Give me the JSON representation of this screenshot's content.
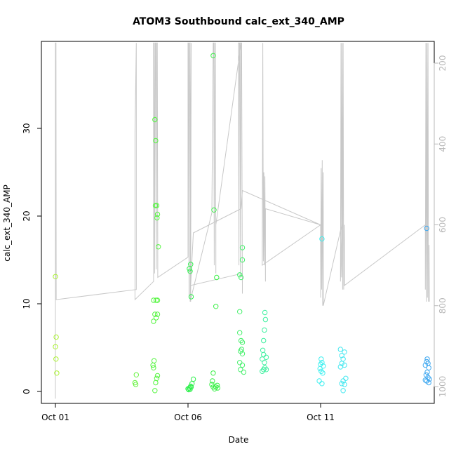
{
  "chart_data": {
    "type": "scatter",
    "title": "ATOM3 Southbound calc_ext_340_AMP",
    "xlabel": "Date",
    "ylabel": "calc_ext_340_AMP",
    "ylim": [
      0,
      40
    ],
    "yticks": [
      0,
      10,
      20,
      30
    ],
    "y2lim": [
      1030,
      150
    ],
    "y2ticks": [
      200,
      400,
      600,
      800,
      1000
    ],
    "xlim": [
      0,
      14.5
    ],
    "xticks": [
      {
        "x": 0,
        "label": "Oct 01"
      },
      {
        "x": 5,
        "label": "Oct 06"
      },
      {
        "x": 10,
        "label": "Oct 11"
      }
    ],
    "line_color": "#c8c8c8",
    "points": [
      {
        "x": 0.0,
        "y": 13.1,
        "c": "#aaf32f"
      },
      {
        "x": 0.03,
        "y": 6.2,
        "c": "#aaf32f"
      },
      {
        "x": 0.0,
        "y": 5.1,
        "c": "#aaf32f"
      },
      {
        "x": 0.02,
        "y": 3.7,
        "c": "#aaf32f"
      },
      {
        "x": 0.05,
        "y": 2.1,
        "c": "#aaf32f"
      },
      {
        "x": 3.05,
        "y": 1.9,
        "c": "#66f33f"
      },
      {
        "x": 3.0,
        "y": 1.0,
        "c": "#66f33f"
      },
      {
        "x": 3.03,
        "y": 0.8,
        "c": "#66f33f"
      },
      {
        "x": 3.75,
        "y": 31.0,
        "c": "#55f540"
      },
      {
        "x": 3.78,
        "y": 28.6,
        "c": "#55f540"
      },
      {
        "x": 3.77,
        "y": 21.2,
        "c": "#55f540"
      },
      {
        "x": 3.82,
        "y": 21.2,
        "c": "#55f540"
      },
      {
        "x": 3.85,
        "y": 20.2,
        "c": "#55f540"
      },
      {
        "x": 3.83,
        "y": 19.8,
        "c": "#55f540"
      },
      {
        "x": 3.88,
        "y": 16.5,
        "c": "#55f540"
      },
      {
        "x": 3.7,
        "y": 10.4,
        "c": "#55f540"
      },
      {
        "x": 3.8,
        "y": 10.4,
        "c": "#55f540"
      },
      {
        "x": 3.85,
        "y": 10.4,
        "c": "#55f540"
      },
      {
        "x": 3.75,
        "y": 8.8,
        "c": "#55f540"
      },
      {
        "x": 3.85,
        "y": 8.8,
        "c": "#55f540"
      },
      {
        "x": 3.8,
        "y": 8.4,
        "c": "#55f540"
      },
      {
        "x": 3.7,
        "y": 8.0,
        "c": "#55f540"
      },
      {
        "x": 3.72,
        "y": 3.5,
        "c": "#55f540"
      },
      {
        "x": 3.68,
        "y": 3.0,
        "c": "#55f540"
      },
      {
        "x": 3.7,
        "y": 2.7,
        "c": "#55f540"
      },
      {
        "x": 3.85,
        "y": 1.8,
        "c": "#55f540"
      },
      {
        "x": 3.82,
        "y": 1.5,
        "c": "#55f540"
      },
      {
        "x": 3.78,
        "y": 1.0,
        "c": "#55f540"
      },
      {
        "x": 3.75,
        "y": 0.1,
        "c": "#55f540"
      },
      {
        "x": 5.1,
        "y": 14.5,
        "c": "#2ff04d"
      },
      {
        "x": 5.05,
        "y": 14.0,
        "c": "#2ff04d"
      },
      {
        "x": 5.08,
        "y": 13.7,
        "c": "#2ff04d"
      },
      {
        "x": 5.12,
        "y": 10.8,
        "c": "#2ff04d"
      },
      {
        "x": 5.2,
        "y": 1.4,
        "c": "#2ff04d"
      },
      {
        "x": 5.15,
        "y": 0.9,
        "c": "#2ff04d"
      },
      {
        "x": 5.1,
        "y": 0.6,
        "c": "#2ff04d"
      },
      {
        "x": 5.05,
        "y": 0.4,
        "c": "#2ff04d"
      },
      {
        "x": 5.0,
        "y": 0.3,
        "c": "#2ff04d"
      },
      {
        "x": 5.03,
        "y": 0.2,
        "c": "#2ff04d"
      },
      {
        "x": 5.08,
        "y": 0.25,
        "c": "#2ff04d"
      },
      {
        "x": 5.12,
        "y": 0.5,
        "c": "#2ff04d"
      },
      {
        "x": 5.95,
        "y": 38.3,
        "c": "#38f045"
      },
      {
        "x": 5.98,
        "y": 20.7,
        "c": "#38f045"
      },
      {
        "x": 6.08,
        "y": 13.0,
        "c": "#38f045"
      },
      {
        "x": 6.05,
        "y": 9.7,
        "c": "#38f045"
      },
      {
        "x": 5.95,
        "y": 2.1,
        "c": "#38f045"
      },
      {
        "x": 5.92,
        "y": 1.2,
        "c": "#38f045"
      },
      {
        "x": 5.9,
        "y": 0.8,
        "c": "#38f045"
      },
      {
        "x": 5.95,
        "y": 0.5,
        "c": "#38f045"
      },
      {
        "x": 6.0,
        "y": 0.3,
        "c": "#38f045"
      },
      {
        "x": 6.05,
        "y": 0.5,
        "c": "#38f045"
      },
      {
        "x": 6.1,
        "y": 0.7,
        "c": "#38f045"
      },
      {
        "x": 6.12,
        "y": 0.4,
        "c": "#38f045"
      },
      {
        "x": 7.05,
        "y": 16.4,
        "c": "#45f06b"
      },
      {
        "x": 7.05,
        "y": 15.0,
        "c": "#45f06b"
      },
      {
        "x": 6.95,
        "y": 13.3,
        "c": "#45f06b"
      },
      {
        "x": 7.0,
        "y": 13.0,
        "c": "#45f06b"
      },
      {
        "x": 6.95,
        "y": 9.1,
        "c": "#45f06b"
      },
      {
        "x": 6.95,
        "y": 6.7,
        "c": "#45f06b"
      },
      {
        "x": 7.0,
        "y": 5.8,
        "c": "#45f06b"
      },
      {
        "x": 7.05,
        "y": 5.6,
        "c": "#45f06b"
      },
      {
        "x": 7.02,
        "y": 4.8,
        "c": "#45f06b"
      },
      {
        "x": 6.98,
        "y": 4.6,
        "c": "#45f06b"
      },
      {
        "x": 7.05,
        "y": 4.3,
        "c": "#45f06b"
      },
      {
        "x": 6.95,
        "y": 3.3,
        "c": "#45f06b"
      },
      {
        "x": 7.05,
        "y": 3.0,
        "c": "#45f06b"
      },
      {
        "x": 6.98,
        "y": 2.5,
        "c": "#45f06b"
      },
      {
        "x": 7.1,
        "y": 2.2,
        "c": "#45f06b"
      },
      {
        "x": 7.9,
        "y": 9.0,
        "c": "#3ff0a0"
      },
      {
        "x": 7.92,
        "y": 8.2,
        "c": "#3ff0a0"
      },
      {
        "x": 7.88,
        "y": 7.0,
        "c": "#3ff0a0"
      },
      {
        "x": 7.85,
        "y": 5.8,
        "c": "#3ff0a0"
      },
      {
        "x": 7.82,
        "y": 4.7,
        "c": "#3ff0a0"
      },
      {
        "x": 7.85,
        "y": 4.2,
        "c": "#3ff0a0"
      },
      {
        "x": 7.95,
        "y": 3.9,
        "c": "#3ff0a0"
      },
      {
        "x": 7.8,
        "y": 3.7,
        "c": "#3ff0a0"
      },
      {
        "x": 7.88,
        "y": 3.3,
        "c": "#3ff0a0"
      },
      {
        "x": 7.9,
        "y": 2.7,
        "c": "#3ff0a0"
      },
      {
        "x": 7.85,
        "y": 2.5,
        "c": "#3ff0a0"
      },
      {
        "x": 7.8,
        "y": 2.3,
        "c": "#3ff0a0"
      },
      {
        "x": 7.95,
        "y": 2.5,
        "c": "#3ff0a0"
      },
      {
        "x": 10.05,
        "y": 17.4,
        "c": "#3ff0f0"
      },
      {
        "x": 10.02,
        "y": 3.7,
        "c": "#3ff0f0"
      },
      {
        "x": 10.05,
        "y": 3.3,
        "c": "#3ff0f0"
      },
      {
        "x": 10.0,
        "y": 3.1,
        "c": "#3ff0f0"
      },
      {
        "x": 10.1,
        "y": 2.9,
        "c": "#3ff0f0"
      },
      {
        "x": 9.98,
        "y": 2.6,
        "c": "#3ff0f0"
      },
      {
        "x": 10.02,
        "y": 2.3,
        "c": "#3ff0f0"
      },
      {
        "x": 10.08,
        "y": 2.1,
        "c": "#3ff0f0"
      },
      {
        "x": 9.95,
        "y": 1.2,
        "c": "#3ff0f0"
      },
      {
        "x": 10.05,
        "y": 0.9,
        "c": "#3ff0f0"
      },
      {
        "x": 10.75,
        "y": 4.8,
        "c": "#45e8f0"
      },
      {
        "x": 10.9,
        "y": 4.5,
        "c": "#45e8f0"
      },
      {
        "x": 10.8,
        "y": 4.1,
        "c": "#45e8f0"
      },
      {
        "x": 10.85,
        "y": 3.7,
        "c": "#45e8f0"
      },
      {
        "x": 10.8,
        "y": 3.2,
        "c": "#45e8f0"
      },
      {
        "x": 10.9,
        "y": 3.0,
        "c": "#45e8f0"
      },
      {
        "x": 10.75,
        "y": 2.8,
        "c": "#45e8f0"
      },
      {
        "x": 10.95,
        "y": 1.5,
        "c": "#45e8f0"
      },
      {
        "x": 10.85,
        "y": 1.2,
        "c": "#45e8f0"
      },
      {
        "x": 10.8,
        "y": 0.9,
        "c": "#45e8f0"
      },
      {
        "x": 10.9,
        "y": 0.8,
        "c": "#45e8f0"
      },
      {
        "x": 10.85,
        "y": 0.1,
        "c": "#45e8f0"
      },
      {
        "x": 14.0,
        "y": 18.6,
        "c": "#3fa8f0"
      },
      {
        "x": 14.02,
        "y": 3.7,
        "c": "#3fa8f0"
      },
      {
        "x": 14.0,
        "y": 3.4,
        "c": "#3fa8f0"
      },
      {
        "x": 14.05,
        "y": 3.2,
        "c": "#3fa8f0"
      },
      {
        "x": 13.95,
        "y": 3.0,
        "c": "#3fa8f0"
      },
      {
        "x": 14.08,
        "y": 2.7,
        "c": "#3fa8f0"
      },
      {
        "x": 14.02,
        "y": 2.2,
        "c": "#3fa8f0"
      },
      {
        "x": 13.98,
        "y": 1.9,
        "c": "#3fa8f0"
      },
      {
        "x": 14.05,
        "y": 1.6,
        "c": "#3fa8f0"
      },
      {
        "x": 14.1,
        "y": 1.4,
        "c": "#3fa8f0"
      },
      {
        "x": 14.0,
        "y": 1.2,
        "c": "#3fa8f0"
      },
      {
        "x": 14.08,
        "y": 1.0,
        "c": "#3fa8f0"
      },
      {
        "x": 13.95,
        "y": 1.3,
        "c": "#3fa8f0"
      }
    ],
    "line": [
      [
        0.0,
        1030
      ],
      [
        0.0,
        150
      ],
      [
        0.02,
        150
      ],
      [
        0.03,
        785
      ],
      [
        3.05,
        760
      ],
      [
        3.05,
        150
      ],
      [
        3.0,
        370
      ],
      [
        3.0,
        785
      ],
      [
        3.7,
        740
      ],
      [
        3.7,
        150
      ],
      [
        3.72,
        150
      ],
      [
        3.74,
        720
      ],
      [
        3.76,
        150
      ],
      [
        3.78,
        150
      ],
      [
        3.8,
        710
      ],
      [
        3.82,
        150
      ],
      [
        3.84,
        150
      ],
      [
        3.86,
        700
      ],
      [
        3.86,
        730
      ],
      [
        5.0,
        680
      ],
      [
        5.0,
        150
      ],
      [
        5.02,
        150
      ],
      [
        5.04,
        780
      ],
      [
        5.06,
        150
      ],
      [
        5.08,
        150
      ],
      [
        5.1,
        790
      ],
      [
        5.12,
        150
      ],
      [
        5.08,
        790
      ],
      [
        5.9,
        570
      ],
      [
        5.95,
        150
      ],
      [
        5.97,
        150
      ],
      [
        5.99,
        700
      ],
      [
        6.01,
        150
      ],
      [
        6.03,
        150
      ],
      [
        6.05,
        720
      ],
      [
        6.05,
        600
      ],
      [
        7.0,
        150
      ],
      [
        6.9,
        150
      ],
      [
        6.92,
        700
      ],
      [
        6.94,
        150
      ],
      [
        6.96,
        150
      ],
      [
        6.98,
        730
      ],
      [
        7.0,
        150
      ],
      [
        7.02,
        150
      ],
      [
        7.05,
        770
      ],
      [
        7.05,
        720
      ],
      [
        5.1,
        750
      ],
      [
        5.2,
        620
      ],
      [
        7.0,
        560
      ],
      [
        7.05,
        515
      ],
      [
        10.0,
        600
      ],
      [
        7.8,
        700
      ],
      [
        7.82,
        150
      ],
      [
        7.84,
        690
      ],
      [
        7.86,
        470
      ],
      [
        7.88,
        700
      ],
      [
        7.9,
        480
      ],
      [
        7.92,
        740
      ],
      [
        7.92,
        560
      ],
      [
        10.0,
        600
      ],
      [
        10.0,
        780
      ],
      [
        10.02,
        460
      ],
      [
        10.04,
        760
      ],
      [
        10.06,
        440
      ],
      [
        10.08,
        800
      ],
      [
        10.1,
        470
      ],
      [
        10.1,
        780
      ],
      [
        10.1,
        800
      ],
      [
        10.8,
        600
      ],
      [
        10.75,
        740
      ],
      [
        10.77,
        150
      ],
      [
        10.79,
        730
      ],
      [
        10.81,
        150
      ],
      [
        10.83,
        760
      ],
      [
        10.85,
        150
      ],
      [
        10.87,
        760
      ],
      [
        10.9,
        600
      ],
      [
        10.9,
        750
      ],
      [
        13.95,
        600
      ],
      [
        13.95,
        760
      ],
      [
        13.97,
        150
      ],
      [
        13.99,
        790
      ],
      [
        14.01,
        150
      ],
      [
        14.03,
        780
      ],
      [
        14.05,
        150
      ],
      [
        14.07,
        790
      ],
      [
        14.09,
        650
      ],
      [
        14.1,
        790
      ]
    ]
  }
}
